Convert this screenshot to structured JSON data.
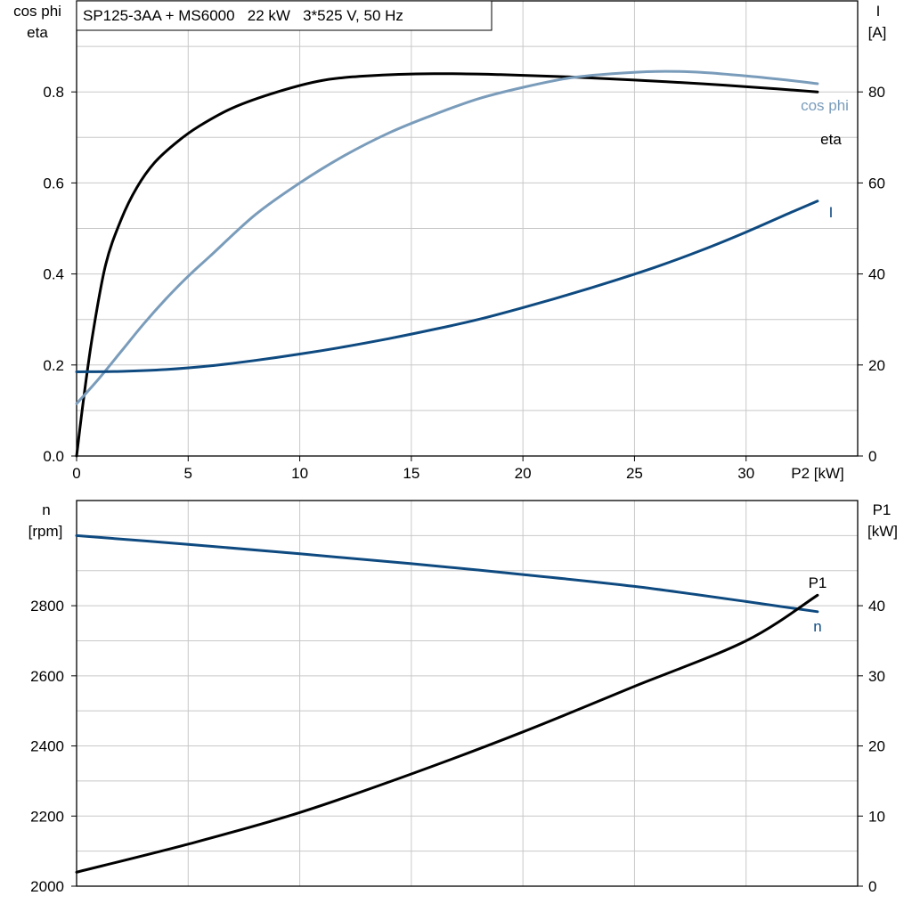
{
  "colors": {
    "eta": "#000000",
    "cos_phi": "#7a9cbb",
    "current": "#0e4a80",
    "speed": "#0e4a80",
    "p1": "#000000",
    "grid": "#c8c8c8"
  },
  "chart_data": [
    {
      "type": "line",
      "title": "SP125-3AA + MS6000   22 kW   3*525 V, 50 Hz",
      "xlabel": "P2 [kW]",
      "ylabel_left_line1": "cos phi",
      "ylabel_left_line2": "eta",
      "ylabel_right_line1": "I",
      "ylabel_right_line2": "[A]",
      "xlim": [
        0,
        35
      ],
      "ylim_left": [
        0,
        1.0
      ],
      "ylim_right": [
        0,
        100
      ],
      "x_ticks": [
        0,
        5,
        10,
        15,
        20,
        25,
        30
      ],
      "y_ticks_left": [
        0.0,
        0.2,
        0.4,
        0.6,
        0.8
      ],
      "y_ticks_right": [
        0,
        20,
        40,
        60,
        80
      ],
      "y_tick_labels_left": [
        "0.0",
        "0.2",
        "0.4",
        "0.6",
        "0.8"
      ],
      "grid": true,
      "series": [
        {
          "name": "eta",
          "axis": "left",
          "color": "#000000",
          "x": [
            0,
            0.3,
            0.7,
            1.3,
            2,
            2.7,
            3.5,
            4.5,
            5.5,
            7,
            9,
            11,
            13,
            16,
            19,
            22,
            25,
            28,
            31,
            33.2
          ],
          "y": [
            0.0,
            0.12,
            0.26,
            0.42,
            0.52,
            0.59,
            0.645,
            0.69,
            0.725,
            0.765,
            0.8,
            0.825,
            0.835,
            0.84,
            0.838,
            0.833,
            0.826,
            0.818,
            0.808,
            0.8
          ]
        },
        {
          "name": "cos phi",
          "axis": "left",
          "color": "#7a9cbb",
          "x": [
            0,
            1,
            2,
            3,
            4,
            5,
            6,
            8,
            10,
            12,
            14,
            16,
            18,
            20,
            22,
            24,
            26,
            28,
            30,
            32,
            33.2
          ],
          "y": [
            0.115,
            0.17,
            0.23,
            0.29,
            0.345,
            0.395,
            0.44,
            0.53,
            0.6,
            0.66,
            0.71,
            0.75,
            0.785,
            0.81,
            0.83,
            0.84,
            0.845,
            0.843,
            0.835,
            0.825,
            0.818
          ]
        },
        {
          "name": "I",
          "axis": "right",
          "color": "#0e4a80",
          "x": [
            0,
            2,
            4,
            6,
            8,
            10,
            12,
            14,
            16,
            18,
            20,
            22,
            24,
            26,
            28,
            30,
            32,
            33.2
          ],
          "y": [
            18.5,
            18.6,
            19.0,
            19.8,
            21.0,
            22.4,
            24.0,
            25.8,
            27.8,
            30.0,
            32.6,
            35.4,
            38.4,
            41.6,
            45.2,
            49.2,
            53.5,
            56.0
          ]
        }
      ],
      "curve_labels": {
        "cos_phi": "cos phi",
        "eta": "eta",
        "current": "I"
      }
    },
    {
      "type": "line",
      "title": "",
      "xlabel": "",
      "ylabel_left_line1": "n",
      "ylabel_left_line2": "[rpm]",
      "ylabel_right_line1": "P1",
      "ylabel_right_line2": "[kW]",
      "xlim": [
        0,
        35
      ],
      "ylim_left": [
        2000,
        3100
      ],
      "ylim_right": [
        0,
        55
      ],
      "y_ticks_left": [
        2000,
        2200,
        2400,
        2600,
        2800
      ],
      "y_ticks_right": [
        0,
        10,
        20,
        30,
        40
      ],
      "grid": true,
      "series": [
        {
          "name": "n",
          "axis": "left",
          "color": "#0e4a80",
          "x": [
            0,
            5,
            10,
            15,
            20,
            25,
            30,
            33.2
          ],
          "y": [
            3000,
            2975,
            2948,
            2920,
            2889,
            2855,
            2812,
            2783
          ]
        },
        {
          "name": "P1",
          "axis": "right",
          "color": "#000000",
          "x": [
            0,
            5,
            10,
            15,
            20,
            25,
            30,
            33.2
          ],
          "y": [
            2.0,
            6.0,
            10.5,
            16.0,
            22.0,
            28.5,
            35.0,
            41.5
          ]
        }
      ],
      "curve_labels": {
        "p1": "P1",
        "speed": "n"
      }
    }
  ]
}
